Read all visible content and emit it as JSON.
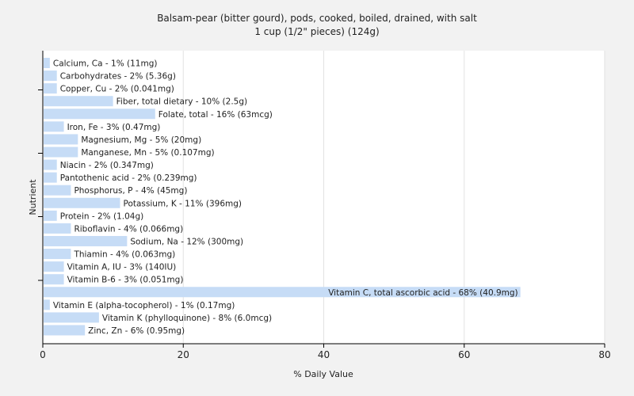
{
  "chart_data": {
    "type": "bar",
    "orientation": "horizontal",
    "title": "Balsam-pear (bitter gourd), pods, cooked, boiled, drained, with salt",
    "subtitle": "1 cup (1/2\" pieces) (124g)",
    "xlabel": "% Daily Value",
    "ylabel": "Nutrient",
    "xlim": [
      0,
      80
    ],
    "xticks": [
      "0",
      "20",
      "40",
      "60",
      "80"
    ],
    "grid": true,
    "bar_color": "#c6dcf6",
    "categories": [
      "Calcium, Ca",
      "Carbohydrates",
      "Copper, Cu",
      "Fiber, total dietary",
      "Folate, total",
      "Iron, Fe",
      "Magnesium, Mg",
      "Manganese, Mn",
      "Niacin",
      "Pantothenic acid",
      "Phosphorus, P",
      "Potassium, K",
      "Protein",
      "Riboflavin",
      "Sodium, Na",
      "Thiamin",
      "Vitamin A, IU",
      "Vitamin B-6",
      "Vitamin C, total ascorbic acid",
      "Vitamin E (alpha-tocopherol)",
      "Vitamin K (phylloquinone)",
      "Zinc, Zn"
    ],
    "values": [
      1,
      2,
      2,
      10,
      16,
      3,
      5,
      5,
      2,
      2,
      4,
      11,
      2,
      4,
      12,
      4,
      3,
      3,
      68,
      1,
      8,
      6
    ],
    "data_labels": [
      "Calcium, Ca - 1% (11mg)",
      "Carbohydrates - 2% (5.36g)",
      "Copper, Cu - 2% (0.041mg)",
      "Fiber, total dietary - 10% (2.5g)",
      "Folate, total - 16% (63mcg)",
      "Iron, Fe - 3% (0.47mg)",
      "Magnesium, Mg - 5% (20mg)",
      "Manganese, Mn - 5% (0.107mg)",
      "Niacin - 2% (0.347mg)",
      "Pantothenic acid - 2% (0.239mg)",
      "Phosphorus, P - 4% (45mg)",
      "Potassium, K - 11% (396mg)",
      "Protein - 2% (1.04g)",
      "Riboflavin - 4% (0.066mg)",
      "Sodium, Na - 12% (300mg)",
      "Thiamin - 4% (0.063mg)",
      "Vitamin A, IU - 3% (140IU)",
      "Vitamin B-6 - 3% (0.051mg)",
      "Vitamin C, total ascorbic acid - 68% (40.9mg)",
      "Vitamin E (alpha-tocopherol) - 1% (0.17mg)",
      "Vitamin K (phylloquinone) - 8% (6.0mcg)",
      "Zinc, Zn - 6% (0.95mg)"
    ]
  }
}
